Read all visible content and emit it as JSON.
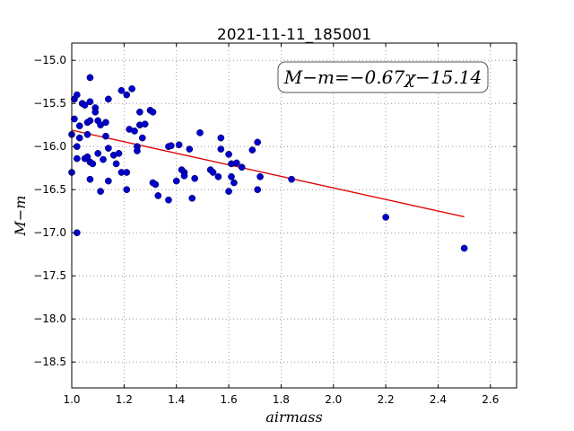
{
  "chart_data": {
    "type": "scatter",
    "title": "2021-11-11_185001",
    "xlabel": "airmass",
    "ylabel": "M−m",
    "xlim": [
      1.0,
      2.7
    ],
    "ylim": [
      -18.8,
      -14.8
    ],
    "x_ticks": [
      "1.0",
      "1.2",
      "1.4",
      "1.6",
      "1.8",
      "2.0",
      "2.2",
      "2.4",
      "2.6"
    ],
    "y_ticks": [
      "−15.0",
      "−15.5",
      "−16.0",
      "−16.5",
      "−17.0",
      "−17.5",
      "−18.0",
      "−18.5"
    ],
    "x_tick_values": [
      1.0,
      1.2,
      1.4,
      1.6,
      1.8,
      2.0,
      2.2,
      2.4,
      2.6
    ],
    "y_tick_values": [
      -15.0,
      -15.5,
      -16.0,
      -16.5,
      -17.0,
      -17.5,
      -18.0,
      -18.5
    ],
    "grid": true,
    "annotation": "M−m=−0.67χ−15.14",
    "point_color": "#0000cc",
    "fit_color": "#dd0000",
    "fit_line": {
      "slope": -0.67,
      "intercept": -15.14,
      "x_range": [
        1.0,
        2.5
      ]
    },
    "points": [
      [
        1.0,
        -16.3
      ],
      [
        1.0,
        -15.86
      ],
      [
        1.01,
        -15.45
      ],
      [
        1.01,
        -15.68
      ],
      [
        1.02,
        -15.4
      ],
      [
        1.02,
        -16.0
      ],
      [
        1.02,
        -16.14
      ],
      [
        1.02,
        -17.0
      ],
      [
        1.03,
        -15.76
      ],
      [
        1.03,
        -15.9
      ],
      [
        1.04,
        -15.5
      ],
      [
        1.05,
        -15.52
      ],
      [
        1.05,
        -16.14
      ],
      [
        1.06,
        -16.12
      ],
      [
        1.06,
        -15.72
      ],
      [
        1.06,
        -15.86
      ],
      [
        1.07,
        -15.7
      ],
      [
        1.07,
        -16.38
      ],
      [
        1.07,
        -15.2
      ],
      [
        1.07,
        -15.48
      ],
      [
        1.07,
        -16.18
      ],
      [
        1.08,
        -16.2
      ],
      [
        1.09,
        -15.55
      ],
      [
        1.09,
        -15.6
      ],
      [
        1.1,
        -16.08
      ],
      [
        1.1,
        -15.7
      ],
      [
        1.11,
        -16.52
      ],
      [
        1.11,
        -15.75
      ],
      [
        1.12,
        -16.15
      ],
      [
        1.13,
        -15.88
      ],
      [
        1.13,
        -15.72
      ],
      [
        1.14,
        -15.45
      ],
      [
        1.14,
        -16.02
      ],
      [
        1.14,
        -16.4
      ],
      [
        1.16,
        -16.1
      ],
      [
        1.17,
        -16.2
      ],
      [
        1.18,
        -16.08
      ],
      [
        1.19,
        -15.35
      ],
      [
        1.19,
        -16.3
      ],
      [
        1.21,
        -15.4
      ],
      [
        1.21,
        -16.5
      ],
      [
        1.21,
        -16.3
      ],
      [
        1.22,
        -15.8
      ],
      [
        1.23,
        -15.33
      ],
      [
        1.24,
        -15.82
      ],
      [
        1.25,
        -16.0
      ],
      [
        1.25,
        -16.05
      ],
      [
        1.26,
        -15.75
      ],
      [
        1.26,
        -15.6
      ],
      [
        1.27,
        -15.9
      ],
      [
        1.28,
        -15.74
      ],
      [
        1.3,
        -15.58
      ],
      [
        1.31,
        -16.42
      ],
      [
        1.31,
        -15.6
      ],
      [
        1.32,
        -16.44
      ],
      [
        1.33,
        -16.57
      ],
      [
        1.37,
        -16.62
      ],
      [
        1.37,
        -16.0
      ],
      [
        1.38,
        -15.99
      ],
      [
        1.4,
        -16.4
      ],
      [
        1.41,
        -15.98
      ],
      [
        1.42,
        -16.27
      ],
      [
        1.43,
        -16.3
      ],
      [
        1.43,
        -16.34
      ],
      [
        1.45,
        -16.03
      ],
      [
        1.46,
        -16.6
      ],
      [
        1.47,
        -16.37
      ],
      [
        1.49,
        -15.84
      ],
      [
        1.53,
        -16.27
      ],
      [
        1.54,
        -16.3
      ],
      [
        1.56,
        -16.35
      ],
      [
        1.57,
        -15.9
      ],
      [
        1.57,
        -16.03
      ],
      [
        1.6,
        -16.09
      ],
      [
        1.6,
        -16.52
      ],
      [
        1.61,
        -16.2
      ],
      [
        1.61,
        -16.35
      ],
      [
        1.62,
        -16.42
      ],
      [
        1.63,
        -16.19
      ],
      [
        1.65,
        -16.24
      ],
      [
        1.69,
        -16.04
      ],
      [
        1.71,
        -15.95
      ],
      [
        1.71,
        -16.5
      ],
      [
        1.72,
        -16.35
      ],
      [
        1.84,
        -16.38
      ],
      [
        2.2,
        -16.82
      ],
      [
        2.5,
        -17.18
      ]
    ]
  }
}
